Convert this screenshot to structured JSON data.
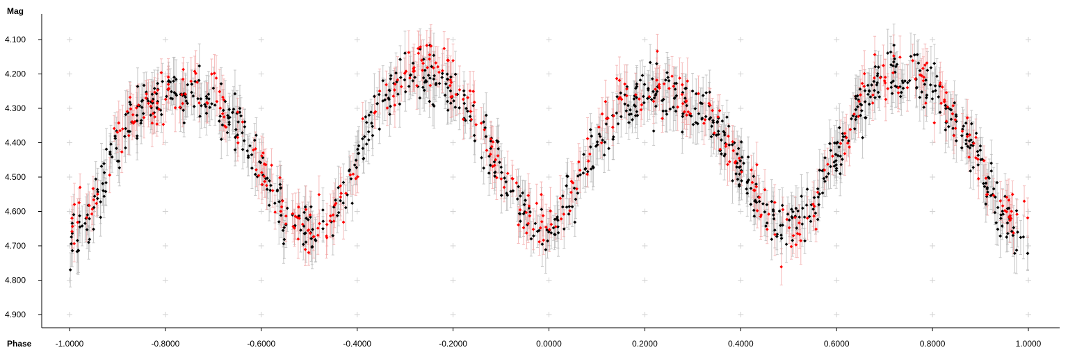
{
  "chart_data": {
    "type": "scatter",
    "xlabel": "Phase",
    "ylabel": "Mag",
    "xlim": [
      -1.05,
      1.05
    ],
    "ylim": [
      4.05,
      4.94
    ],
    "y_inverted": true,
    "grid": "plus markers at tick intersections",
    "x_ticks": [
      "-1.0000",
      "-0.8000",
      "-0.6000",
      "-0.4000",
      "-0.2000",
      "0.0000",
      "0.2000",
      "0.4000",
      "0.6000",
      "0.8000",
      "1.0000"
    ],
    "y_ticks": [
      "4.100",
      "4.200",
      "4.300",
      "4.400",
      "4.500",
      "4.600",
      "4.700",
      "4.800",
      "4.900"
    ],
    "series": [
      {
        "color": "#000000",
        "error_bar_color": "#b4b4b4",
        "approx_points": 900,
        "points": [
          [
            -1.0,
            4.71
          ],
          [
            -0.95,
            4.6
          ],
          [
            -0.9,
            4.4
          ],
          [
            -0.85,
            4.3
          ],
          [
            -0.8,
            4.25
          ],
          [
            -0.75,
            4.26
          ],
          [
            -0.7,
            4.29
          ],
          [
            -0.65,
            4.35
          ],
          [
            -0.6,
            4.48
          ],
          [
            -0.55,
            4.62
          ],
          [
            -0.5,
            4.65
          ],
          [
            -0.45,
            4.6
          ],
          [
            -0.4,
            4.45
          ],
          [
            -0.35,
            4.28
          ],
          [
            -0.3,
            4.2
          ],
          [
            -0.25,
            4.2
          ],
          [
            -0.2,
            4.25
          ],
          [
            -0.15,
            4.35
          ],
          [
            -0.1,
            4.48
          ],
          [
            -0.05,
            4.63
          ],
          [
            0.0,
            4.68
          ],
          [
            0.05,
            4.55
          ],
          [
            0.1,
            4.4
          ],
          [
            0.15,
            4.3
          ],
          [
            0.2,
            4.25
          ],
          [
            0.25,
            4.26
          ],
          [
            0.3,
            4.29
          ],
          [
            0.35,
            4.36
          ],
          [
            0.4,
            4.48
          ],
          [
            0.45,
            4.62
          ],
          [
            0.5,
            4.64
          ],
          [
            0.55,
            4.58
          ],
          [
            0.6,
            4.44
          ],
          [
            0.65,
            4.3
          ],
          [
            0.7,
            4.21
          ],
          [
            0.75,
            4.21
          ],
          [
            0.8,
            4.25
          ],
          [
            0.85,
            4.34
          ],
          [
            0.9,
            4.46
          ],
          [
            0.95,
            4.62
          ],
          [
            1.0,
            4.69
          ]
        ]
      },
      {
        "color": "#ff0000",
        "error_bar_color": "#f2a3a3",
        "approx_points": 450,
        "points": [
          [
            -1.0,
            4.66
          ],
          [
            -0.95,
            4.57
          ],
          [
            -0.9,
            4.37
          ],
          [
            -0.85,
            4.29
          ],
          [
            -0.8,
            4.27
          ],
          [
            -0.75,
            4.25
          ],
          [
            -0.7,
            4.27
          ],
          [
            -0.65,
            4.34
          ],
          [
            -0.6,
            4.47
          ],
          [
            -0.55,
            4.61
          ],
          [
            -0.5,
            4.66
          ],
          [
            -0.45,
            4.62
          ],
          [
            -0.4,
            4.45
          ],
          [
            -0.35,
            4.27
          ],
          [
            -0.3,
            4.19
          ],
          [
            -0.25,
            4.17
          ],
          [
            -0.2,
            4.22
          ],
          [
            -0.15,
            4.33
          ],
          [
            -0.1,
            4.47
          ],
          [
            -0.05,
            4.6
          ],
          [
            0.0,
            4.66
          ],
          [
            0.05,
            4.54
          ],
          [
            0.1,
            4.38
          ],
          [
            0.15,
            4.29
          ],
          [
            0.2,
            4.26
          ],
          [
            0.25,
            4.24
          ],
          [
            0.3,
            4.27
          ],
          [
            0.35,
            4.34
          ],
          [
            0.4,
            4.47
          ],
          [
            0.45,
            4.61
          ],
          [
            0.5,
            4.66
          ],
          [
            0.55,
            4.62
          ],
          [
            0.6,
            4.44
          ],
          [
            0.65,
            4.27
          ],
          [
            0.7,
            4.2
          ],
          [
            0.75,
            4.17
          ],
          [
            0.8,
            4.22
          ],
          [
            0.85,
            4.33
          ],
          [
            0.9,
            4.47
          ],
          [
            0.95,
            4.6
          ],
          [
            1.0,
            4.6
          ]
        ]
      }
    ]
  }
}
